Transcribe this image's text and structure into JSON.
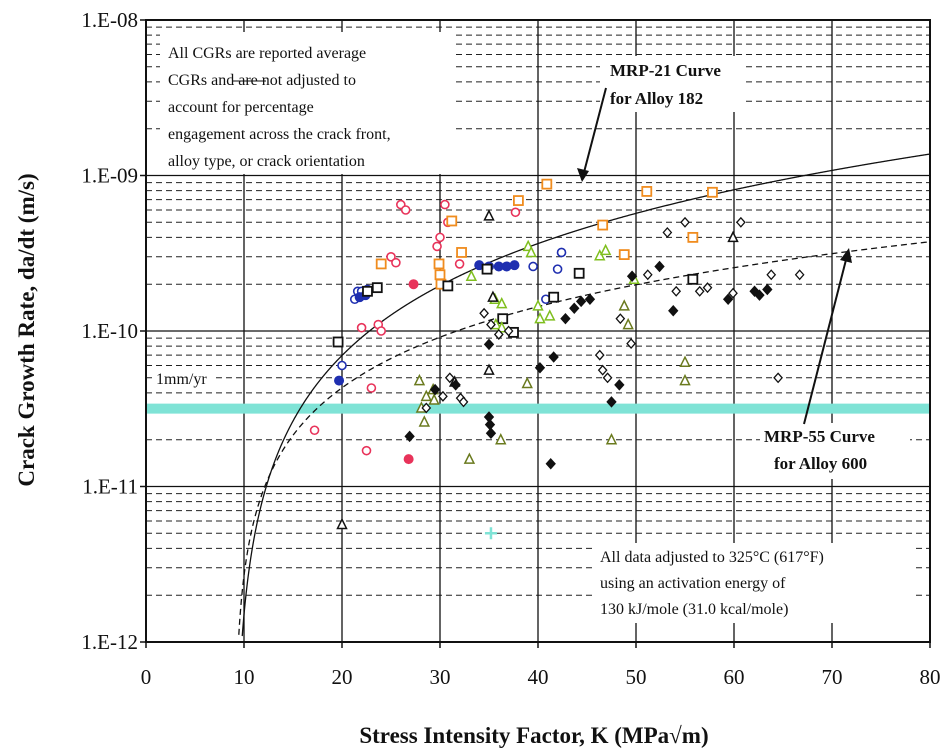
{
  "chart_data": {
    "type": "scatter",
    "title": "",
    "xlabel": "Stress Intensity Factor, K (MPa√m)",
    "ylabel": "Crack Growth Rate, da/dt (m/s)",
    "xlim": [
      0,
      80
    ],
    "ylim": [
      1e-12,
      1e-08
    ],
    "yscale": "log",
    "grid": true,
    "x_tick_labels": [
      "0",
      "10",
      "20",
      "30",
      "40",
      "50",
      "60",
      "70",
      "80"
    ],
    "y_tick_labels": [
      "1.E-12",
      "1.E-11",
      "1.E-10",
      "1.E-09",
      "1.E-08"
    ],
    "annotations": {
      "top_note": [
        "All CGRs are reported average",
        "CGRs and are not adjusted to",
        "account for percentage",
        "engagement across the crack front,",
        "alloy type, or crack orientation"
      ],
      "bottom_note": [
        "All data adjusted to 325°C (617°F)",
        "using an activation energy of",
        "130 kJ/mole (31.0 kcal/mole)"
      ],
      "mrp21_label": [
        "MRP-21 Curve",
        "for Alloy 182"
      ],
      "mrp55_label": [
        "MRP-55 Curve",
        "for Alloy 600"
      ],
      "reference_line_label": "1mm/yr"
    },
    "reference_line": {
      "y": 3.17e-11,
      "color": "#7fe3d6"
    },
    "curves": [
      {
        "name": "MRP-21 Curve for Alloy 182",
        "style": "solid",
        "alpha": 1.5e-12,
        "beta": 1.6,
        "kth": 9.0,
        "color": "#111111"
      },
      {
        "name": "MRP-55 Curve for Alloy 600",
        "style": "dashed",
        "alpha": 2.67e-12,
        "beta": 1.16,
        "kth": 9.0,
        "color": "#111111"
      }
    ],
    "series": [
      {
        "marker": "circle-open",
        "color": "#e8335a",
        "points": [
          [
            17.2,
            2.3e-11
          ],
          [
            22.5,
            1.7e-11
          ],
          [
            23,
            4.3e-11
          ],
          [
            22,
            1.05e-10
          ],
          [
            23.7,
            1.1e-10
          ],
          [
            24,
            1e-10
          ],
          [
            25,
            3e-10
          ],
          [
            25.5,
            2.75e-10
          ],
          [
            26,
            6.5e-10
          ],
          [
            26.5,
            6e-10
          ],
          [
            29.7,
            3.5e-10
          ],
          [
            30,
            4e-10
          ],
          [
            30.5,
            6.5e-10
          ],
          [
            30.8,
            5e-10
          ],
          [
            32,
            2.7e-10
          ],
          [
            37.7,
            5.8e-10
          ]
        ]
      },
      {
        "marker": "circle-filled",
        "color": "#e8335a",
        "points": [
          [
            26.8,
            1.5e-11
          ],
          [
            27.3,
            2e-10
          ]
        ]
      },
      {
        "marker": "circle-open",
        "color": "#1f2fb0",
        "points": [
          [
            20,
            6e-11
          ],
          [
            21.3,
            1.6e-10
          ],
          [
            21.6,
            1.8e-10
          ],
          [
            22,
            1.8e-10
          ],
          [
            22.6,
            1.85e-10
          ],
          [
            39.5,
            2.6e-10
          ],
          [
            40.8,
            1.6e-10
          ],
          [
            42.4,
            3.2e-10
          ],
          [
            42,
            2.5e-10
          ]
        ]
      },
      {
        "marker": "circle-filled",
        "color": "#1f2fb0",
        "points": [
          [
            19.7,
            4.8e-11
          ],
          [
            21.8,
            1.65e-10
          ],
          [
            22.4,
            1.7e-10
          ],
          [
            34,
            2.65e-10
          ],
          [
            35,
            2.6e-10
          ],
          [
            36,
            2.6e-10
          ],
          [
            36.8,
            2.6e-10
          ],
          [
            37.6,
            2.65e-10
          ]
        ]
      },
      {
        "marker": "square-open",
        "color": "#f08c1e",
        "points": [
          [
            24,
            2.7e-10
          ],
          [
            29.9,
            2.7e-10
          ],
          [
            30,
            2.3e-10
          ],
          [
            30.1,
            2e-10
          ],
          [
            31.2,
            5.1e-10
          ],
          [
            32.2,
            3.2e-10
          ],
          [
            38,
            6.9e-10
          ],
          [
            40.9,
            8.8e-10
          ],
          [
            46.6,
            4.8e-10
          ],
          [
            48.8,
            3.1e-10
          ],
          [
            51.1,
            7.9e-10
          ],
          [
            55.8,
            4e-10
          ],
          [
            57.8,
            7.8e-10
          ]
        ]
      },
      {
        "marker": "square-open",
        "color": "#111111",
        "points": [
          [
            19.6,
            8.5e-11
          ],
          [
            22.6,
            1.8e-10
          ],
          [
            23.6,
            1.9e-10
          ],
          [
            30.8,
            1.95e-10
          ],
          [
            34.8,
            2.5e-10
          ],
          [
            36.4,
            1.2e-10
          ],
          [
            37.5,
            9.8e-11
          ],
          [
            41.6,
            1.65e-10
          ],
          [
            44.2,
            2.35e-10
          ],
          [
            55.8,
            2.15e-10
          ]
        ]
      },
      {
        "marker": "triangle-open",
        "color": "#7fbf1e",
        "points": [
          [
            33.2,
            2.25e-10
          ],
          [
            35.6,
            1.6e-10
          ],
          [
            35.7,
            1.1e-10
          ],
          [
            36.3,
            1.05e-10
          ],
          [
            36.3,
            1.5e-10
          ],
          [
            39,
            3.5e-10
          ],
          [
            39.3,
            3.2e-10
          ],
          [
            40,
            1.45e-10
          ],
          [
            40.2,
            1.2e-10
          ],
          [
            41.2,
            1.25e-10
          ],
          [
            46.3,
            3.05e-10
          ],
          [
            46.9,
            3.3e-10
          ],
          [
            49.8,
            2.15e-10
          ]
        ]
      },
      {
        "marker": "triangle-open",
        "color": "#6a7a1e",
        "points": [
          [
            27.9,
            4.8e-11
          ],
          [
            28.1,
            3.2e-11
          ],
          [
            28.4,
            2.6e-11
          ],
          [
            28.6,
            3.8e-11
          ],
          [
            29.3,
            4.2e-11
          ],
          [
            29.4,
            3.6e-11
          ],
          [
            33,
            1.5e-11
          ],
          [
            36.2,
            2e-11
          ],
          [
            38.9,
            4.6e-11
          ],
          [
            47.5,
            2e-11
          ],
          [
            48.8,
            1.45e-10
          ],
          [
            49.2,
            1.1e-10
          ],
          [
            55,
            6.3e-11
          ],
          [
            55,
            4.8e-11
          ]
        ]
      },
      {
        "marker": "triangle-open",
        "color": "#111111",
        "points": [
          [
            20,
            5.7e-12
          ],
          [
            31.5,
            4.7e-11
          ],
          [
            35,
            5.5e-10
          ],
          [
            35,
            5.6e-11
          ],
          [
            35.4,
            1.65e-10
          ],
          [
            59.9,
            4e-10
          ]
        ]
      },
      {
        "marker": "diamond-open",
        "color": "#111111",
        "points": [
          [
            28.6,
            3.2e-11
          ],
          [
            30.3,
            3.8e-11
          ],
          [
            31,
            5e-11
          ],
          [
            32.1,
            3.7e-11
          ],
          [
            32.4,
            3.5e-11
          ],
          [
            34.5,
            1.3e-10
          ],
          [
            35.2,
            1.1e-10
          ],
          [
            36,
            9.5e-11
          ],
          [
            37,
            1e-10
          ],
          [
            46.3,
            7e-11
          ],
          [
            46.6,
            5.6e-11
          ],
          [
            47.1,
            5e-11
          ],
          [
            48.4,
            1.2e-10
          ],
          [
            49.5,
            8.3e-11
          ],
          [
            51.2,
            2.3e-10
          ],
          [
            53.2,
            4.3e-10
          ],
          [
            54.1,
            1.8e-10
          ],
          [
            55,
            5e-10
          ],
          [
            56.5,
            1.8e-10
          ],
          [
            57.3,
            1.9e-10
          ],
          [
            59.9,
            1.75e-10
          ],
          [
            60.7,
            5e-10
          ],
          [
            63.8,
            2.3e-10
          ],
          [
            64.5,
            5e-11
          ],
          [
            66.7,
            2.3e-10
          ]
        ]
      },
      {
        "marker": "diamond-filled",
        "color": "#111111",
        "points": [
          [
            26.9,
            2.1e-11
          ],
          [
            29.5,
            4.2e-11
          ],
          [
            31.6,
            4.5e-11
          ],
          [
            35,
            8.2e-11
          ],
          [
            35,
            2.8e-11
          ],
          [
            35.1,
            2.5e-11
          ],
          [
            35.2,
            2.2e-11
          ],
          [
            40.2,
            5.8e-11
          ],
          [
            41.3,
            1.4e-11
          ],
          [
            41.6,
            6.8e-11
          ],
          [
            42.8,
            1.2e-10
          ],
          [
            43.7,
            1.4e-10
          ],
          [
            44.4,
            1.55e-10
          ],
          [
            45.3,
            1.6e-10
          ],
          [
            47.5,
            3.5e-11
          ],
          [
            48.3,
            4.5e-11
          ],
          [
            49.6,
            2.25e-10
          ],
          [
            52.4,
            2.6e-10
          ],
          [
            53.8,
            1.35e-10
          ],
          [
            59.4,
            1.6e-10
          ],
          [
            62.1,
            1.8e-10
          ],
          [
            62.6,
            1.7e-10
          ],
          [
            63.4,
            1.85e-10
          ]
        ]
      },
      {
        "marker": "plus",
        "color": "#7fe3d6",
        "points": [
          [
            35.2,
            5e-12
          ]
        ]
      }
    ]
  }
}
